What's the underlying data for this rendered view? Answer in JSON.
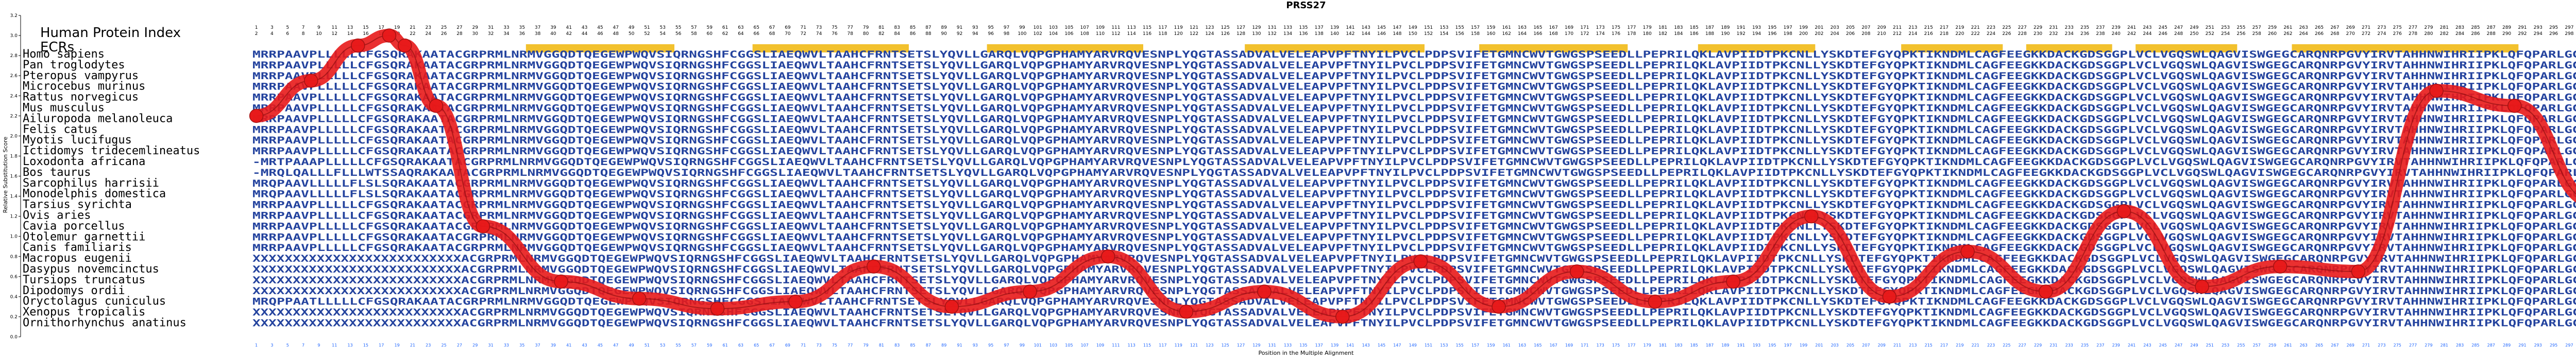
{
  "chart_data": {
    "type": "line",
    "title": "PRSS27",
    "xlabel": "Position in the Multiple Alignment",
    "ylabel": "Relative Substitution Score",
    "ylim": [
      0,
      3.2
    ],
    "yticks": [
      "0.0",
      "0.2",
      "0.4",
      "0.6",
      "0.8",
      "1.0",
      "1.2",
      "1.4",
      "1.6",
      "1.8",
      "2.0",
      "2.2",
      "2.4",
      "2.6",
      "2.8",
      "3.0",
      "3.2"
    ],
    "grid": false,
    "alignment_length": 300,
    "header_labels": {
      "human_index": "Human Protein Index",
      "ecrs": "ECRs"
    },
    "species": [
      "Homo sapiens",
      "Pan troglodytes",
      "Pteropus vampyrus",
      "Microcebus murinus",
      "Rattus norvegicus",
      "Mus musculus",
      "Ailuropoda melanoleuca",
      "Felis catus",
      "Myotis lucifugus",
      "Ictidomys tridecemlineatus",
      "Loxodonta africana",
      "Bos taurus",
      "Sarcophilus harrisii",
      "Monodelphis domestica",
      "Tarsius syrichta",
      "Ovis aries",
      "Cavia porcellus",
      "Otolemur garnettii",
      "Canis familiaris",
      "Macropus eugenii",
      "Dasypus novemcinctus",
      "Tursiops truncatus",
      "Dipodomys ordii",
      "Oryctolagus cuniculus",
      "Xenopus tropicalis",
      "Ornithorhynchus anatinus"
    ],
    "sequences": [
      "MRRPAAVPLLLLLCFGSQRAKAATACGRPRMLNRMVGGQDTQEGEWPWQVSIQRNGSHFCGGSLIAEQWVLTAAHCFRNTSETSLYQVLLGARQLVQPGPHAMYARVRQVESNPLYQGTASSADVALVELEAPVPFTNYILPVCLPDPSVIFETGMNCWVTGWGSPSEEDLLPEPRILQKLAVPIIDTPKCNLLYSKDTEFGYQPKTIKNDMLCAGFEEGKKDACKGDSGGPLVCLVGQSWLQAGVISWGEGCARQNRPGVYIRVTAHHNWIHRIIPKLQFQPARLGGQK",
      "MRRPAAVPLLLLLCFGSQRAKAATACGRPRMLNRMVGGQDTQEGEWPWQVSIQRNGSHFCGGSLIAEQWVLTAAHCFRNTSETSLYQVLLGARQLVQPGPHAMYARVRQVESNPLYQGTASSADVALVELEAPVPFTNYILPVCLPDPSVIFETGMNCWVTGWGSPSEEDLLPEPRILQKLAVPIIDTPKCNLLYSKDTEFGYQPKTIKNDMLCAGFEEGKKDACKGDSGGPLVCLVGQSWLQAGVISWGEGCARQNRPGVYIRVTAHHNWIHRIIPKLQFQPARLGGQK",
      "MRRPAAVPLLLLLCFGSQRAKAATACGRPRMLNRMVGGQDTQEGEWPWQVSIQRNGSHFCGGSLIAEQWVLTAAHCFRNTSETSLYQVLLGARQLVQPGPHAMYARVRQVESNPLYQGTASSADVALVELEAPVPFTNYILPVCLPDPSVIFETGMNCWVTGWGSPSEEDLLPEPRILQKLAVPIIDTPKCNLLYSKDTEFGYQPKTIKNDMLCAGFEEGKKDACKGDSGGPLVCLVGQSWLQAGVISWGEGCARQNRPGVYIRVTAHHNWIHRIIPKLQFQPARLGGQK",
      "MRRPAAVPLLLLLCFGSQRAKAATACGRPRMLNRMVGGQDTQEGEWPWQVSIQRNGSHFCGGSLIAEQWVLTAAHCFRNTSETSLYQVLLGARQLVQPGPHAMYARVRQVESNPLYQGTASSADVALVELEAPVPFTNYILPVCLPDPSVIFETGMNCWVTGWGSPSEEDLLPEPRILQKLAVPIIDTPKCNLLYSKDTEFGYQPKTIKNDMLCAGFEEGKKDACKGDSGGPLVCLVGQSWLQAGVISWGEGCARQNRPGVYIRVTAHHNWIHRIIPKLQFQPARLGGQK",
      "MRRPAAVPLLLLLCFGSQRAKAATACGRPRMLNRMVGGQDTQEGEWPWQVSIQRNGSHFCGGSLIAEQWVLTAAHCFRNTSETSLYQVLLGARQLVQPGPHAMYARVRQVESNPLYQGTASSADVALVELEAPVPFTNYILPVCLPDPSVIFETGMNCWVTGWGSPSEEDLLPEPRILQKLAVPIIDTPKCNLLYSKDTEFGYQPKTIKNDMLCAGFEEGKKDACKGDSGGPLVCLVGQSWLQAGVISWGEGCARQNRPGVYIRVTAHHNWIHRIIPKLQFQPARLGGQK",
      "MRRPAAVPLLLLLCFGSQRAKAATACGRPRMLNRMVGGQDTQEGEWPWQVSIQRNGSHFCGGSLIAEQWVLTAAHCFRNTSETSLYQVLLGARQLVQPGPHAMYARVRQVESNPLYQGTASSADVALVELEAPVPFTNYILPVCLPDPSVIFETGMNCWVTGWGSPSEEDLLPEPRILQKLAVPIIDTPKCNLLYSKDTEFGYQPKTIKNDMLCAGFEEGKKDACKGDSGGPLVCLVGQSWLQAGVISWGEGCARQNRPGVYIRVTAHHNWIHRIIPKLQFQPARLGGQK",
      "MRRPAAVPLLLLLCFGSQRAKAATACGRPRMLNRMVGGQDTQEGEWPWQVSIQRNGSHFCGGSLIAEQWVLTAAHCFRNTSETSLYQVLLGARQLVQPGPHAMYARVRQVESNPLYQGTASSADVALVELEAPVPFTNYILPVCLPDPSVIFETGMNCWVTGWGSPSEEDLLPEPRILQKLAVPIIDTPKCNLLYSKDTEFGYQPKTIKNDMLCAGFEEGKKDACKGDSGGPLVCLVGQSWLQAGVISWGEGCARQNRPGVYIRVTAHHNWIHRIIPKLQFQPARLGGQK",
      "MRRPAAVPLLLLLCFGSQRAKAATACGRPRMLNRMVGGQDTQEGEWPWQVSIQRNGSHFCGGSLIAEQWVLTAAHCFRNTSETSLYQVLLGARQLVQPGPHAMYARVRQVESNPLYQGTASSADVALVELEAPVPFTNYILPVCLPDPSVIFETGMNCWVTGWGSPSEEDLLPEPRILQKLAVPIIDTPKCNLLYSKDTEFGYQPKTIKNDMLCAGFEEGKKDACKGDSGGPLVCLVGQSWLQAGVISWGEGCARQNRPGVYIRVTAHHNWIHRIIPKLQFQPARLGGQK",
      "MRRPAAVPLLLLLCFGSQRAKAATACGRPRMLNRMVGGQDTQEGEWPWQVSIQRNGSHFCGGSLIAEQWVLTAAHCFRNTSETSLYQVLLGARQLVQPGPHAMYARVRQVESNPLYQGTASSADVALVELEAPVPFTNYILPVCLPDPSVIFETGMNCWVTGWGSPSEEDLLPEPRILQKLAVPIIDTPKCNLLYSKDTEFGYQPKTIKNDMLCAGFEEGKKDACKGDSGGPLVCLVGQSWLQAGVISWGEGCARQNRPGVYIRVTAHHNWIHRIIPKLQFQPARLGGQK",
      "MRRPAAVPLLLLLCFGSQRAKAATACGRPRMLNRMVGGQDTQEGEWPWQVSIQRNGSHFCGGSLIAEQWVLTAAHCFRNTSETSLYQVLLGARQLVQPGPHAMYARVRQVESNPLYQGTASSADVALVELEAPVPFTNYILPVCLPDPSVIFETGMNCWVTGWGSPSEEDLLPEPRILQKLAVPIIDTPKCNLLYSKDTEFGYQPKTIKNDMLCAGFEEGKKDACKGDSGGPLVCLVGQSWLQAGVISWGEGCARQNRPGVYIRVTAHHNWIHRIIPKLQFQPARLGGQK",
      "-MRTPAAAPLLLLLCFGSQRAKAATACGRPRMLNRMVGGQDTQEGEWPWQVSIQRNGSHFCGGSLIAEQWVLTAAHCFRNTSETSLYQVLLGARQLVQPGPHAMYARVRQVESNPLYQGTASSADVALVELEAPVPFTNYILPVCLPDPSVIFETGMNCWVTGWGSPSEEDLLPEPRILQKLAVPIIDTPKCNLLYSKDTEFGYQPKTIKNDMLCAGFEEGKKDACKGDSGGPLVCLVGQSWLQAGVISWGEGCARQNRPGVYIRVTAHHNWIHRIIPKLQFQPARLGGQ",
      "-MRQLQALLLFLLLWTSSAQRAKAATACGRPRMLNRMVGGQDTQEGEWPWQVSIQRNGSHFCGGSLIAEQWVLTAAHCFRNTSETSLYQVLLGARQLVQPGPHAMYARVRQVESNPLYQGTASSADVALVELEAPVPFTNYILPVCLPDPSVIFETGMNCWVTGWGSPSEEDLLPEPRILQKLAVPIIDTPKCNLLYSKDTEFGYQPKTIKNDMLCAGFEEGKKDACKGDSGGPLVCLVGQSWLQAGVISWGEGCARQNRPGVYIRVTAHHNWIHRIIPKLQFQPARLGG",
      "MRQPAAVLLLLLFLSLSQRAKAATACGRPRMLNRMVGGQDTQEGEWPWQVSIQRNGSHFCGGSLIAEQWVLTAAHCFRNTSETSLYQVLLGARQLVQPGPHAMYARVRQVESNPLYQGTASSADVALVELEAPVPFTNYILPVCLPDPSVIFETGMNCWVTGWGSPSEEDLLPEPRILQKLAVPIIDTPKCNLLYSKDTEFGYQPKTIKNDMLCAGFEEGKKDACKGDSGGPLVCLVGQSWLQAGVISWGEGCARQNRPGVYIRVTAHHNWIHRIIPKLQFQPARLGGQK",
      "MRQPAAVLLLLLFLSLSQRAKAATACGRPRMLNRMVGGQDTQEGEWPWQVSIQRNGSHFCGGSLIAEQWVLTAAHCFRNTSETSLYQVLLGARQLVQPGPHAMYARVRQVESNPLYQGTASSADVALVELEAPVPFTNYILPVCLPDPSVIFETGMNCWVTGWGSPSEEDLLPEPRILQKLAVPIIDTPKCNLLYSKDTEFGYQPKTIKNDMLCAGFEEGKKDACKGDSGGPLVCLVGQSWLQAGVISWGEGCARQNRPGVYIRVTAHHNWIHRIIPKLQFQPARLGGQK",
      "MRRPAAVPLLLLLCFGSQRAKAATACGRPRMLNRMVGGQDTQEGEWPWQVSIQRNGSHFCGGSLIAEQWVLTAAHCFRNTSETSLYQVLLGARQLVQPGPHAMYARVRQVESNPLYQGTASSADVALVELEAPVPFTNYILPVCLPDPSVIFETGMNCWVTGWGSPSEEDLLPEPRILQKLAVPIIDTPKCNLLYSKDTEFGYQPKTIKNDMLCAGFEEGKKDACKGDSGGPLVCLVGQSWLQAGVISWGEGCARQNRPGVYIRVTAHHNWIHRIIPKLQFQPARLGGQK",
      "MRRPAAVPLLLLLCFGSQRAKAATACGRPRMLNRMVGGQDTQEGEWPWQVSIQRNGSHFCGGSLIAEQWVLTAAHCFRNTSETSLYQVLLGARQLVQPGPHAMYARVRQVESNPLYQGTASSADVALVELEAPVPFTNYILPVCLPDPSVIFETGMNCWVTGWGSPSEEDLLPEPRILQKLAVPIIDTPKCNLLYSKDTEFGYQPKTIKNDMLCAGFEEGKKDACKGDSGGPLVCLVGQSWLQAGVISWGEGCARQNRPGVYIRVTAHHNWIHRIIPKLQFQPARLGGQK",
      "MRRPAAVPLLLLLCFGSQRAKAATACGRPRMLNRMVGGQDTQEGEWPWQVSIQRNGSHFCGGSLIAEQWVLTAAHCFRNTSETSLYQVLLGARQLVQPGPHAMYARVRQVESNPLYQGTASSADVALVELEAPVPFTNYILPVCLPDPSVIFETGMNCWVTGWGSPSEEDLLPEPRILQKLAVPIIDTPKCNLLYSKDTEFGYQPKTIKNDMLCAGFEEGKKDACKGDSGGPLVCLVGQSWLQAGVISWGEGCARQNRPGVYIRVTAHHNWIHRIIPKLQFQPARLGGQK",
      "MRRPAAVPLLLLLCFGSQRAKAATACGRPRMLNRMVGGQDTQEGEWPWQVSIQRNGSHFCGGSLIAEQWVLTAAHCFRNTSETSLYQVLLGARQLVQPGPHAMYARVRQVESNPLYQGTASSADVALVELEAPVPFTNYILPVCLPDPSVIFETGMNCWVTGWGSPSEEDLLPEPRILQKLAVPIIDTPKCNLLYSKDTEFGYQPKTIKNDMLCAGFEEGKKDACKGDSGGPLVCLVGQSWLQAGVISWGEGCARQNRPGVYIRVTAHHNWIHRIIPKLQFQPARLGGQK",
      "MRRPAAVPLLLLLCFGSQRAKAATACGRPRMLNRMVGGQDTQEGEWPWQVSIQRNGSHFCGGSLIAEQWVLTAAHCFRNTSETSLYQVLLGARQLVQPGPHAMYARVRQVESNPLYQGTASSADVALVELEAPVPFTNYILPVCLPDPSVIFETGMNCWVTGWGSPSEEDLLPEPRILQKLAVPIIDTPKCNLLYSKDTEFGYQPKTIKNDMLCAGFEEGKKDACKGDSGGPLVCLVGQSWLQAGVISWGEGCARQNRPGVYIRVTAHHNWIHRIIPKLQFQPARLGGQK",
      "XXXXXXXXXXXXXXXXXXXXXXXXXXACGRPRMLNRMVGGQDTQEGEWPWQVSIQRNGSHFCGGSLIAEQWVLTAAHCFRNTSETSLYQVLLGARQLVQPGPHAMYARVRQVESNPLYQGTASSADVALVELEAPVPFTNYILPVCLPDPSVIFETGMNCWVTGWGSPSEEDLLPEPRILQKLAVPIIDTPKCNLLYSKDTEFGYQPKTIKNDMLCAGFEEGKKDACKGDSGGPLVCLVGQSWLQAGVISWGEGCARQNRPGVYIRVTAHHNWIHRIIPKLQFQPARLGGQK",
      "XXXXXXXXXXXXXXXXXXXXXXXXXXACGRPRMLNRMVGGQDTQEGEWPWQVSIQRNGSHFCGGSLIAEQWVLTAAHCFRNTSETSLYQVLLGARQLVQPGPHAMYARVRQVESNPLYQGTASSADVALVELEAPVPFTNYILPVCLPDPSVIFETGMNCWVTGWGSPSEEDLLPEPRILQKLAVPIIDTPKCNLLYSKDTEFGYQPKTIKNDMLCAGFEEGKKDACKGDSGGPLVCLVGQSWLQAGVISWGEGCARQNRPGVYIRVTAHHNWIHRIIPKLQFQPARLGGQK",
      "XXXXXXXXXXXXXXXXXXXXXXXXXXACGRPRMLNRMVGGQDTQEGEWPWQVSIQRNGSHFCGGSLIAEQWVLTAAHCFRNTSETSLYQVLLGARQLVQPGPHAMYARVRQVESNPLYQGTASSADVALVELEAPVPFTNYILPVCLPDPSVIFETGMNCWVTGWGSPSEEDLLPEPRILQKLAVPIIDTPKCNLLYSKDTEFGYQPKTIKNDMLCAGFEEGKKDACKGDSGGPLVCLVGQSWLQAGVISWGEGCARQNRPGVYIRVTAHHNWIHRIIPKLQFQPARLGGQK",
      "XXXXXXXXXXXXXXXXXXXXXXXXXXACGRPRMLNRMVGGQDTQEGEWPWQVSIQRNGSHFCGGSLIAEQWVLTAAHCFRNTSETSLYQVLLGARQLVQPGPHAMYARVRQVESNPLYQGTASSADVALVELEAPVPFTNYILPVCLPDPSVIFETGMNCWVTGWGSPSEEDLLPEPRILQKLAVPIIDTPKCNLLYSKDTEFGYQPKTIKNDMLCAGFEEGKKDACKGDSGGPLVCLVGQSWLQAGVISWGEGCARQNRPGVYIRVTAHHNWIHRIIPKLQFQPARLGGQK",
      "MRQPPAATLLLLLCFGSQRAKAATACGRPRMLNRMVGGQDTQEGEWPWQVSIQRNGSHFCGGSLIAEQWVLTAAHCFRNTSETSLYQVLLGARQLVQPGPHAMYARVRQVESNPLYQGTASSADVALVELEAPVPFTNYILPVCLPDPSVIFETGMNCWVTGWGSPSEEDLLPEPRILQKLAVPIIDTPKCNLLYSKDTEFGYQPKTIKNDMLCAGFEEGKKDACKGDSGGPLVCLVGQSWLQAGVISWGEGCARQNRPGVYIRVTAHHNWIHRIIPKLQFQPARLGGQK",
      "XXXXXXXXXXXXXXXXXXXXXXXXXXACGRPRMLNRMVGGQDTQEGEWPWQVSIQRNGSHFCGGSLIAEQWVLTAAHCFRNTSETSLYQVLLGARQLVQPGPHAMYARVRQVESNPLYQGTASSADVALVELEAPVPFTNYILPVCLPDPSVIFETGMNCWVTGWGSPSEEDLLPEPRILQKLAVPIIDTPKCNLLYSKDTEFGYQPKTIKNDMLCAGFEEGKKDACKGDSGGPLVCLVGQSWLQAGVISWGEGCARQNRPGVYIRVTAHHNWIHRIIPKLQFQPARLGGQK",
      "XXXXXXXXXXXXXXXXXXXXXXXXXXACGRPRMLNRMVGGQDTQEGEWPWQVSIQRNGSHFCGGSLIAEQWVLTAAHCFRNTSETSLYQVLLGARQLVQPGPHAMYARVRQVESNPLYQGTASSADVALVELEAPVPFTNYILPVCLPDPSVIFETGMNCWVTGWGSPSEEDLLPEPRILQKLAVPIIDTPKCNLLYSKDTEFGYQPKTIKNDMLCAGFEEGKKDACKGDSGGPLVCLVGQSWLQAGVISWGEGCARQNRPGVYIRVTAHHNWIHRIIPKLQFQPARLGGQK"
    ],
    "ecr_regions": [
      [
        36,
        54
      ],
      [
        65,
        84
      ],
      [
        95,
        114
      ],
      [
        128,
        150
      ],
      [
        158,
        176
      ],
      [
        186,
        200
      ],
      [
        212,
        224
      ],
      [
        228,
        238
      ],
      [
        242,
        254
      ],
      [
        262,
        290
      ]
    ],
    "series": [
      {
        "x": [
          1,
          8,
          14,
          18,
          20,
          24,
          30,
          40,
          50,
          60,
          70,
          80,
          90,
          100,
          110,
          120,
          130,
          140,
          150,
          160,
          170,
          180,
          190,
          200,
          210,
          220,
          230,
          240,
          250,
          260,
          270,
          280,
          290,
          300
        ],
        "y": [
          2.2,
          2.55,
          2.9,
          3.0,
          2.9,
          2.3,
          1.1,
          0.55,
          0.38,
          0.28,
          0.35,
          0.7,
          0.3,
          0.45,
          0.8,
          0.25,
          0.45,
          0.2,
          0.75,
          0.3,
          0.65,
          0.35,
          0.55,
          1.2,
          0.4,
          0.85,
          0.45,
          1.25,
          0.5,
          0.7,
          0.65,
          2.45,
          2.3,
          1.35
        ]
      }
    ],
    "colors": {
      "line": "#e8191a",
      "ecr": "#f2c12e",
      "residue": "#24439e",
      "gap_text": "#1e8f46",
      "tick_label": "#1f66ff"
    }
  }
}
